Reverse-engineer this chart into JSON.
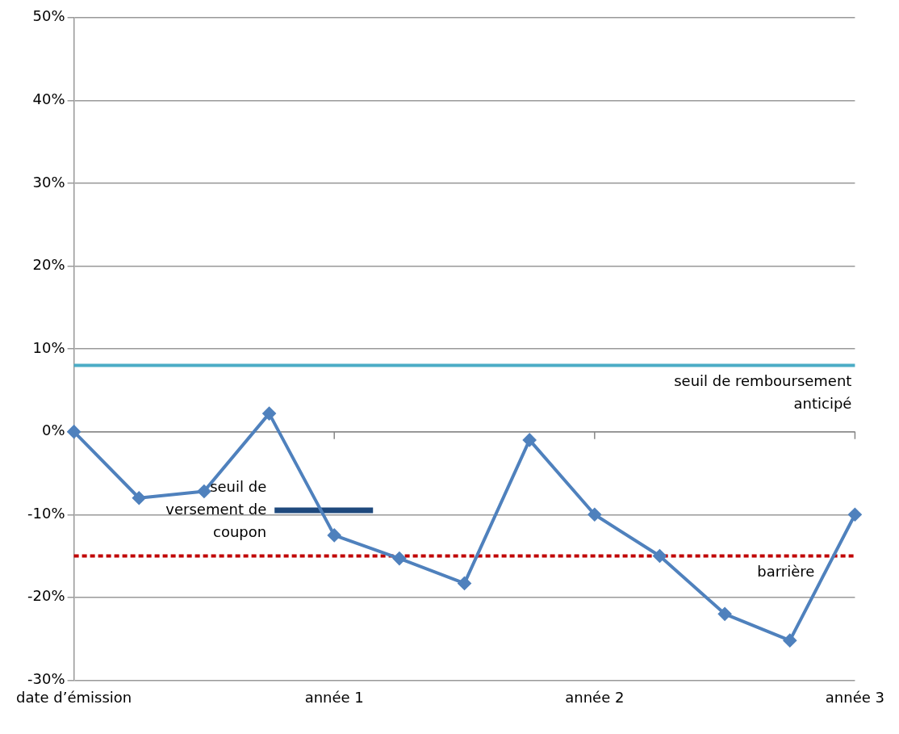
{
  "chart_data": {
    "type": "line",
    "categories": [
      "date d’émission",
      null,
      null,
      null,
      "année 1",
      null,
      null,
      null,
      "année 2",
      null,
      null,
      null,
      "année 3"
    ],
    "ylim": [
      -30,
      50
    ],
    "yticks": [
      {
        "value": -30,
        "label": "-30%"
      },
      {
        "value": -20,
        "label": "-20%"
      },
      {
        "value": -10,
        "label": "-10%"
      },
      {
        "value": 0,
        "label": "0%"
      },
      {
        "value": 10,
        "label": "10%"
      },
      {
        "value": 20,
        "label": "20%"
      },
      {
        "value": 30,
        "label": "30%"
      },
      {
        "value": 40,
        "label": "40%"
      },
      {
        "value": 50,
        "label": "50%"
      }
    ],
    "series": [
      {
        "color": "#4f81bd",
        "values": [
          0,
          -8,
          -7.2,
          2.2,
          -12.5,
          -15.3,
          -18.3,
          -1,
          -10,
          -15,
          -22,
          -25.2,
          -10
        ],
        "marker": "diamond"
      }
    ],
    "ref_lines": [
      {
        "axis": "y",
        "value": 8,
        "label": "seuil de remboursement anticipé",
        "color": "#4bacc6",
        "line_style": "solid"
      },
      {
        "axis": "y",
        "value": -15,
        "label": "barrière",
        "color": "#c00000",
        "line_style": "dashed"
      },
      {
        "axis": "y",
        "value": -9.5,
        "label": "seuil de versement de coupon",
        "color": "#1f497d"
      }
    ],
    "grid": "y",
    "legend": false
  }
}
